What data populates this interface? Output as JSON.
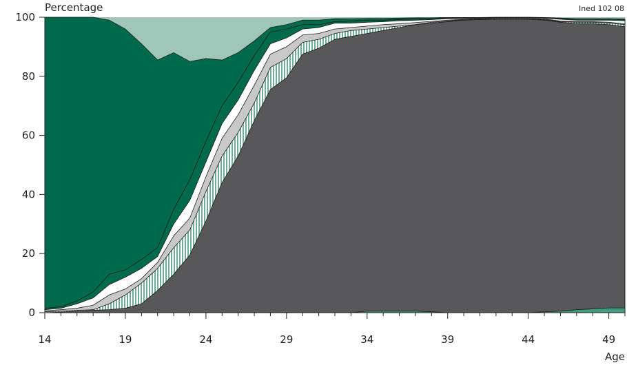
{
  "chart_data": {
    "type": "area",
    "title": "",
    "ylabel": "Percentage",
    "xlabel": "Age",
    "source_note": "Ined 102 08",
    "xlim": [
      14,
      50
    ],
    "ylim": [
      0,
      100
    ],
    "x_ticks": [
      14,
      19,
      24,
      29,
      34,
      39,
      44,
      49
    ],
    "y_ticks": [
      0,
      20,
      40,
      60,
      80,
      100
    ],
    "grid": false,
    "legend": "none",
    "x": [
      14,
      15,
      16,
      17,
      18,
      19,
      20,
      21,
      22,
      23,
      24,
      25,
      26,
      27,
      28,
      29,
      30,
      31,
      32,
      33,
      34,
      35,
      36,
      37,
      38,
      39,
      40,
      41,
      42,
      43,
      44,
      45,
      46,
      47,
      48,
      49,
      50
    ],
    "cumulative_boundaries": [
      {
        "key": "b1",
        "values": [
          0,
          0,
          0,
          0,
          0,
          0,
          0,
          0,
          0,
          0,
          0,
          0,
          0,
          0,
          0,
          0,
          0,
          0,
          0,
          0,
          0.5,
          0.5,
          0.5,
          0.5,
          0.3,
          0,
          0,
          0,
          0,
          0,
          0,
          0.3,
          0.5,
          1,
          1.3,
          1.6,
          1.6
        ]
      },
      {
        "key": "b2",
        "values": [
          0,
          0.2,
          0.5,
          0.8,
          1,
          1.5,
          3,
          7.5,
          13,
          19.5,
          31,
          44,
          53,
          65,
          75.5,
          79.5,
          87.5,
          89.5,
          92.5,
          93.5,
          94.5,
          95.5,
          96.5,
          97.5,
          98,
          98.5,
          99,
          99.2,
          99.3,
          99.3,
          99.3,
          99,
          98.3,
          97.8,
          97.8,
          97.5,
          96.8
        ]
      },
      {
        "key": "b3",
        "values": [
          0.3,
          0.5,
          0.8,
          1,
          3,
          6,
          10,
          15,
          22,
          28,
          41,
          53,
          61,
          71,
          83,
          86,
          91.5,
          92.5,
          94.5,
          95.5,
          96,
          96.5,
          97,
          97.5,
          98.3,
          98.7,
          99.2,
          99.4,
          99.5,
          99.5,
          99.5,
          99.2,
          98.5,
          98.3,
          98.3,
          98,
          97.5
        ]
      },
      {
        "key": "b4",
        "values": [
          0.6,
          1,
          1.5,
          2.5,
          6,
          8,
          11.5,
          17,
          26,
          32,
          46,
          59,
          67,
          77,
          87.5,
          90,
          94,
          94.5,
          96,
          96.5,
          97,
          97.5,
          97.8,
          98.2,
          98.6,
          99,
          99.3,
          99.5,
          99.6,
          99.6,
          99.6,
          99.4,
          98.7,
          98.5,
          98.5,
          98.3,
          97.8
        ]
      },
      {
        "key": "b5",
        "values": [
          1,
          1.5,
          3,
          5,
          9.5,
          12,
          15,
          19,
          30,
          38,
          51,
          64,
          72,
          82,
          91,
          93,
          96,
          96.5,
          98,
          98,
          98.3,
          98.5,
          98.8,
          99,
          99.2,
          99.5,
          99.6,
          99.7,
          99.8,
          99.8,
          99.8,
          99.7,
          99.3,
          99,
          99,
          99,
          98.8
        ]
      },
      {
        "key": "b6",
        "values": [
          1.5,
          2,
          4,
          7,
          13,
          14.5,
          18,
          22,
          35,
          45,
          58,
          70,
          78,
          87,
          95,
          96,
          97.5,
          97.5,
          98.5,
          98.7,
          99,
          99,
          99.2,
          99.4,
          99.5,
          99.7,
          99.8,
          99.8,
          99.9,
          99.9,
          99.9,
          99.8,
          99.5,
          99.3,
          99.3,
          99.3,
          99.2
        ]
      },
      {
        "key": "b7",
        "values": [
          100,
          100,
          100,
          100,
          99,
          96,
          91,
          85.5,
          88,
          85,
          86,
          85.5,
          88,
          92,
          96.5,
          97.5,
          99,
          99,
          99.5,
          99.5,
          99.6,
          99.6,
          99.7,
          99.8,
          99.8,
          99.9,
          99.9,
          99.9,
          100,
          100,
          100,
          99.9,
          99.7,
          99.5,
          99.5,
          99.5,
          99.4
        ]
      }
    ],
    "colors": {
      "bg_top": "#9fc6b8",
      "band1": "#3f9c83",
      "band2": "#58585a",
      "band3_fill": "#ffffff",
      "band3_stripe": "#6fae96",
      "band4": "#c8c8c8",
      "band5": "#ffffff",
      "band6": "#006b4c",
      "band7": "#006b4c",
      "axis": "#222222"
    }
  }
}
